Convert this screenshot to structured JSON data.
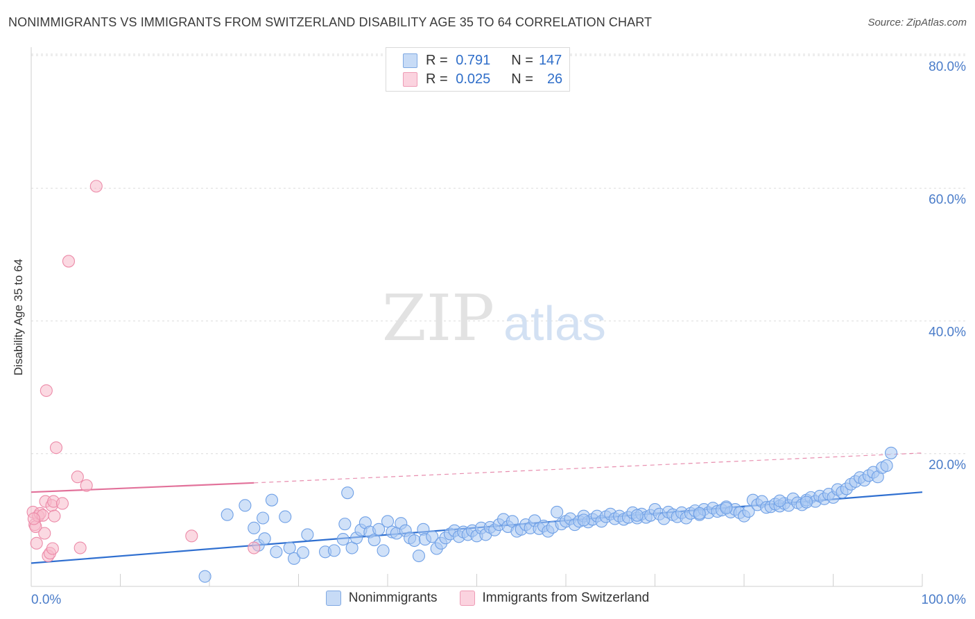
{
  "header": {
    "title": "NONIMMIGRANTS VS IMMIGRANTS FROM SWITZERLAND DISABILITY AGE 35 TO 64 CORRELATION CHART",
    "source": "Source: ZipAtlas.com"
  },
  "watermark": {
    "zip": "ZIP",
    "atlas": "atlas"
  },
  "legend_top": {
    "rows": [
      {
        "r_label": "R =",
        "r_value": "0.791",
        "n_label": "N =",
        "n_value": "147",
        "color": "#a9c8f2"
      },
      {
        "r_label": "R =",
        "r_value": "0.025",
        "n_label": "N =",
        "n_value": "26",
        "color": "#f7b9cb"
      }
    ]
  },
  "legend_bottom": {
    "items": [
      {
        "label": "Nonimmigrants",
        "color": "#a9c8f2"
      },
      {
        "label": "Immigrants from Switzerland",
        "color": "#f7b9cb"
      }
    ]
  },
  "chart_data": {
    "type": "scatter",
    "title": "NONIMMIGRANTS VS IMMIGRANTS FROM SWITZERLAND DISABILITY AGE 35 TO 64 CORRELATION CHART",
    "xlabel": "",
    "ylabel": "Disability Age 35 to 64",
    "xlim": [
      0,
      100
    ],
    "ylim": [
      0,
      82
    ],
    "x_tick_labels": [
      "0.0%",
      "100.0%"
    ],
    "y_ticks": [
      20,
      40,
      60,
      80
    ],
    "y_tick_labels": [
      "20.0%",
      "40.0%",
      "60.0%",
      "80.0%"
    ],
    "grid": true,
    "series": [
      {
        "name": "Nonimmigrants",
        "color": "#6fa0e6",
        "fill": "#a9c8f2",
        "trend": {
          "x": [
            0,
            100
          ],
          "y": [
            3.5,
            14.2
          ],
          "style": "solid",
          "color": "#2f6fd0"
        },
        "points": [
          [
            19.5,
            1.5
          ],
          [
            22,
            10.8
          ],
          [
            24,
            12.2
          ],
          [
            25,
            8.8
          ],
          [
            25.5,
            6.2
          ],
          [
            26,
            10.3
          ],
          [
            26.2,
            7.2
          ],
          [
            27,
            13
          ],
          [
            27.5,
            5.2
          ],
          [
            28.5,
            10.5
          ],
          [
            29,
            5.8
          ],
          [
            29.5,
            4.2
          ],
          [
            30.5,
            5.1
          ],
          [
            31,
            7.8
          ],
          [
            33,
            5.2
          ],
          [
            34,
            5.4
          ],
          [
            35,
            7.1
          ],
          [
            35.2,
            9.4
          ],
          [
            35.5,
            14.1
          ],
          [
            36,
            5.8
          ],
          [
            36.5,
            7.3
          ],
          [
            37,
            8.5
          ],
          [
            37.5,
            9.6
          ],
          [
            38,
            8.2
          ],
          [
            38.5,
            7.0
          ],
          [
            39,
            8.6
          ],
          [
            39.5,
            5.4
          ],
          [
            40,
            9.8
          ],
          [
            40.5,
            8.2
          ],
          [
            41,
            8.0
          ],
          [
            41.5,
            9.5
          ],
          [
            42,
            8.4
          ],
          [
            42.5,
            7.3
          ],
          [
            43,
            6.9
          ],
          [
            43.5,
            4.6
          ],
          [
            44,
            8.6
          ],
          [
            44.2,
            7.1
          ],
          [
            45,
            7.5
          ],
          [
            45.5,
            5.7
          ],
          [
            46,
            6.5
          ],
          [
            46.5,
            7.3
          ],
          [
            47,
            7.9
          ],
          [
            47.5,
            8.4
          ],
          [
            48,
            7.5
          ],
          [
            48.5,
            8.2
          ],
          [
            49,
            7.8
          ],
          [
            49.5,
            8.4
          ],
          [
            50,
            7.6
          ],
          [
            50.5,
            8.8
          ],
          [
            51,
            7.8
          ],
          [
            51.5,
            8.9
          ],
          [
            52,
            8.5
          ],
          [
            52.5,
            9.3
          ],
          [
            53,
            10.1
          ],
          [
            53.5,
            9.0
          ],
          [
            54,
            9.8
          ],
          [
            54.5,
            8.3
          ],
          [
            55,
            8.6
          ],
          [
            55.5,
            9.3
          ],
          [
            56,
            8.8
          ],
          [
            56.5,
            9.9
          ],
          [
            57,
            8.7
          ],
          [
            57.5,
            9.1
          ],
          [
            58,
            8.3
          ],
          [
            58.5,
            8.9
          ],
          [
            59,
            11.2
          ],
          [
            59.5,
            9.4
          ],
          [
            60,
            9.8
          ],
          [
            60.5,
            10.2
          ],
          [
            61,
            9.3
          ],
          [
            61.5,
            9.8
          ],
          [
            62,
            10.6
          ],
          [
            62.5,
            9.7
          ],
          [
            63,
            10.1
          ],
          [
            63.5,
            10.6
          ],
          [
            64,
            9.8
          ],
          [
            64.5,
            10.5
          ],
          [
            65,
            10.9
          ],
          [
            65.5,
            10.2
          ],
          [
            66,
            10.6
          ],
          [
            66.5,
            10.1
          ],
          [
            67,
            10.4
          ],
          [
            67.5,
            11.1
          ],
          [
            68,
            10.3
          ],
          [
            68.5,
            10.9
          ],
          [
            69,
            10.4
          ],
          [
            69.5,
            10.7
          ],
          [
            70,
            11.6
          ],
          [
            70.5,
            10.9
          ],
          [
            71,
            10.2
          ],
          [
            71.5,
            11.2
          ],
          [
            72,
            10.8
          ],
          [
            72.5,
            10.5
          ],
          [
            73,
            11.1
          ],
          [
            73.5,
            10.3
          ],
          [
            74,
            11.0
          ],
          [
            74.5,
            11.4
          ],
          [
            75,
            10.8
          ],
          [
            75.5,
            11.6
          ],
          [
            76,
            11.1
          ],
          [
            76.5,
            11.8
          ],
          [
            77,
            11.3
          ],
          [
            77.5,
            11.5
          ],
          [
            78,
            12.0
          ],
          [
            78.5,
            11.2
          ],
          [
            79,
            11.6
          ],
          [
            79.5,
            11.1
          ],
          [
            80,
            10.6
          ],
          [
            80.5,
            11.3
          ],
          [
            81,
            13.0
          ],
          [
            81.5,
            12.3
          ],
          [
            82,
            12.8
          ],
          [
            82.5,
            11.9
          ],
          [
            83,
            12.0
          ],
          [
            83.5,
            12.4
          ],
          [
            84,
            12.1
          ],
          [
            84.5,
            12.5
          ],
          [
            85,
            12.2
          ],
          [
            85.5,
            13.2
          ],
          [
            86,
            12.6
          ],
          [
            86.5,
            12.3
          ],
          [
            87,
            13.0
          ],
          [
            87.5,
            13.4
          ],
          [
            88,
            12.8
          ],
          [
            88.5,
            13.6
          ],
          [
            89,
            13.2
          ],
          [
            89.5,
            13.9
          ],
          [
            90,
            13.4
          ],
          [
            90.5,
            14.6
          ],
          [
            91,
            14.2
          ],
          [
            91.5,
            14.7
          ],
          [
            92,
            15.4
          ],
          [
            92.5,
            15.8
          ],
          [
            93,
            16.4
          ],
          [
            93.5,
            16.0
          ],
          [
            94,
            16.7
          ],
          [
            94.5,
            17.2
          ],
          [
            95,
            16.5
          ],
          [
            95.5,
            17.9
          ],
          [
            96,
            18.2
          ],
          [
            96.5,
            20.1
          ],
          [
            62,
            10.0
          ],
          [
            68,
            10.7
          ],
          [
            75,
            11.0
          ],
          [
            78,
            11.8
          ],
          [
            84,
            12.9
          ],
          [
            87,
            12.7
          ]
        ]
      },
      {
        "name": "Immigrants from Switzerland",
        "color": "#ec8aa8",
        "fill": "#f7b9cb",
        "trend": {
          "x": [
            0,
            25
          ],
          "y": [
            14.2,
            15.6
          ],
          "style": "solid",
          "color": "#e2719a",
          "extension": {
            "x": [
              25,
              100
            ],
            "y": [
              15.6,
              20.1
            ],
            "style": "dashed"
          }
        },
        "points": [
          [
            0.2,
            11.2
          ],
          [
            0.4,
            9.3
          ],
          [
            0.5,
            9.0
          ],
          [
            0.6,
            6.5
          ],
          [
            0.8,
            10.6
          ],
          [
            1,
            11.0
          ],
          [
            1.3,
            10.7
          ],
          [
            1.5,
            8.0
          ],
          [
            1.6,
            12.8
          ],
          [
            1.7,
            29.5
          ],
          [
            1.9,
            4.6
          ],
          [
            2.1,
            5.0
          ],
          [
            2.3,
            12.2
          ],
          [
            2.4,
            5.7
          ],
          [
            2.5,
            12.8
          ],
          [
            2.6,
            10.6
          ],
          [
            2.8,
            20.9
          ],
          [
            3.5,
            12.5
          ],
          [
            4.2,
            49.0
          ],
          [
            5.2,
            16.5
          ],
          [
            5.5,
            5.8
          ],
          [
            6.2,
            15.2
          ],
          [
            7.3,
            60.3
          ],
          [
            18,
            7.6
          ],
          [
            25,
            5.8
          ],
          [
            0.3,
            10.2
          ]
        ]
      }
    ]
  }
}
